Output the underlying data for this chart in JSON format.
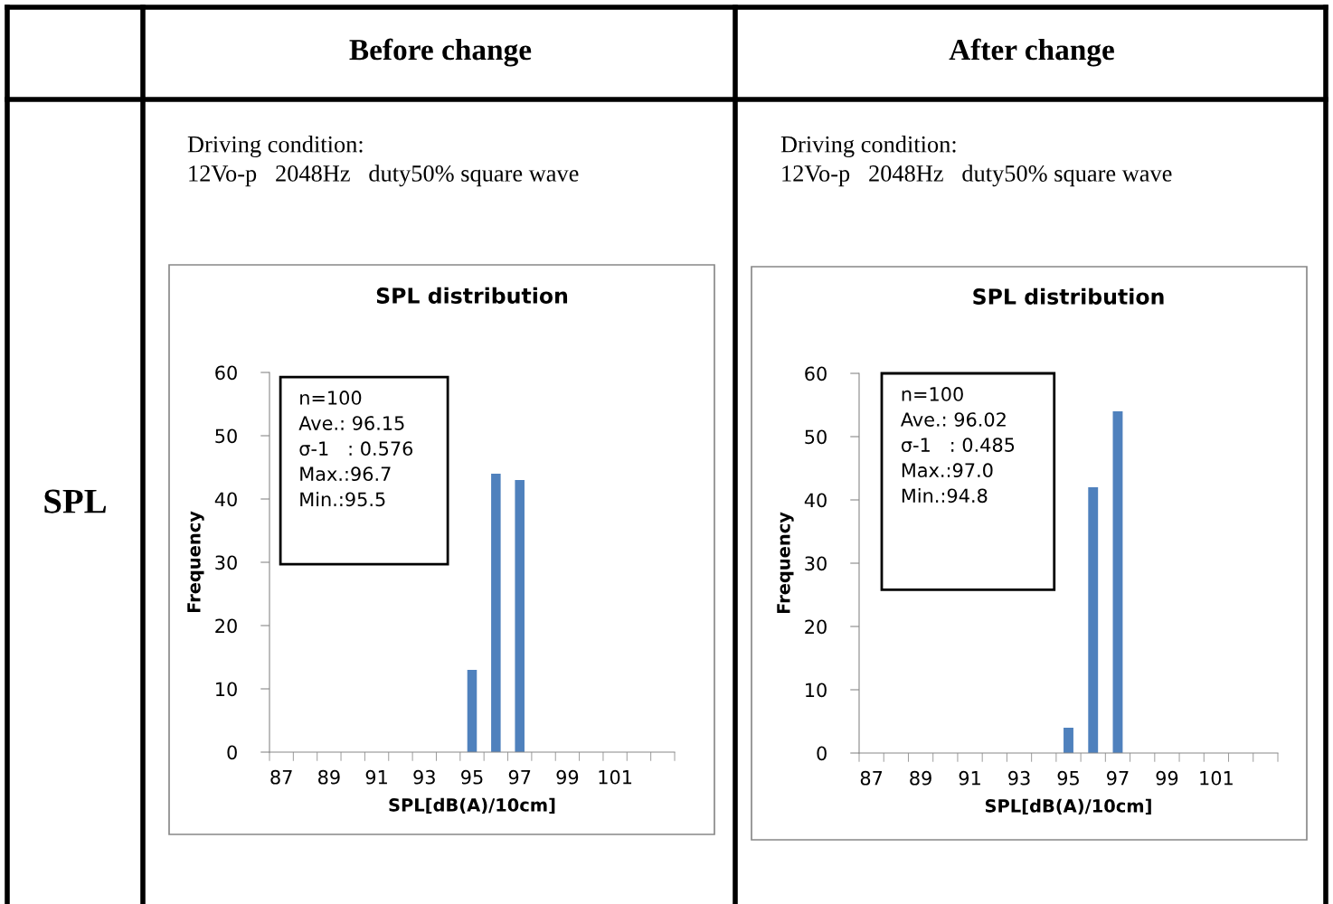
{
  "chart_data": [
    {
      "type": "bar",
      "title": "SPL distribution",
      "xlabel": "SPL[dB(A)/10cm]",
      "ylabel": "Frequency",
      "categories": [
        "87",
        null,
        "89",
        null,
        "91",
        null,
        "93",
        null,
        "95",
        null,
        "97",
        null,
        "99",
        null,
        "101",
        null,
        null
      ],
      "values": [
        0,
        0,
        0,
        0,
        0,
        0,
        0,
        0,
        13,
        44,
        43,
        0,
        0,
        0,
        0,
        0,
        0
      ],
      "color": "#4f81bd",
      "ylim": [
        0,
        60
      ],
      "yticks": [
        0,
        10,
        20,
        30,
        40,
        50,
        60
      ],
      "grid": false,
      "legend": false,
      "annotations": [
        "Before change",
        "Driving condition:\n12Vo-p   2048Hz   duty50% square wave",
        "n=100\nAve.: 96.15\nσ-1   : 0.576\nMax.:96.7\nMin.:95.5",
        "SPL"
      ]
    },
    {
      "type": "bar",
      "title": "SPL distribution",
      "xlabel": "SPL[dB(A)/10cm]",
      "ylabel": "Frequency",
      "categories": [
        "87",
        null,
        "89",
        null,
        "91",
        null,
        "93",
        null,
        "95",
        null,
        "97",
        null,
        "99",
        null,
        "101",
        null,
        null
      ],
      "values": [
        0,
        0,
        0,
        0,
        0,
        0,
        0,
        0,
        4,
        42,
        54,
        0,
        0,
        0,
        0,
        0,
        0
      ],
      "color": "#4f81bd",
      "ylim": [
        0,
        60
      ],
      "yticks": [
        0,
        10,
        20,
        30,
        40,
        50,
        60
      ],
      "grid": false,
      "legend": false,
      "annotations": [
        "After change",
        "Driving condition:\n12Vo-p   2048Hz   duty50% square wave",
        "n=100\nAve.: 96.02\nσ-1   : 0.485\nMax.:97.0\nMin.:94.8"
      ]
    }
  ]
}
